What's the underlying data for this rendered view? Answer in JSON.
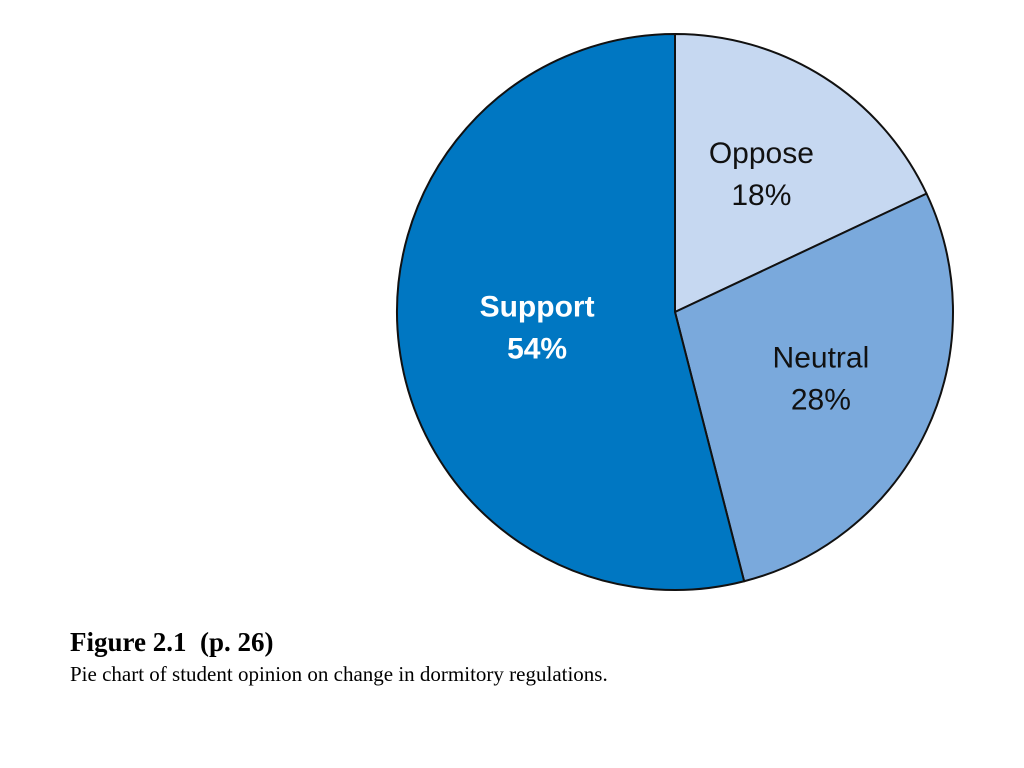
{
  "chart_data": {
    "type": "pie",
    "categories": [
      "Oppose",
      "Neutral",
      "Support"
    ],
    "values": [
      18,
      28,
      54
    ],
    "value_labels": [
      "18%",
      "28%",
      "54%"
    ],
    "colors": [
      "#c6d8f1",
      "#7aa9dc",
      "#0077c2"
    ],
    "label_colors": [
      "#111111",
      "#111111",
      "#ffffff"
    ],
    "label_bold": [
      false,
      false,
      true
    ],
    "start_angle_deg": 0,
    "direction": "clockwise",
    "legend": "none",
    "title": ""
  },
  "caption": {
    "title": "Figure 2.1  (p. 26)",
    "description": "Pie chart of student opinion on change in dormitory regulations."
  }
}
